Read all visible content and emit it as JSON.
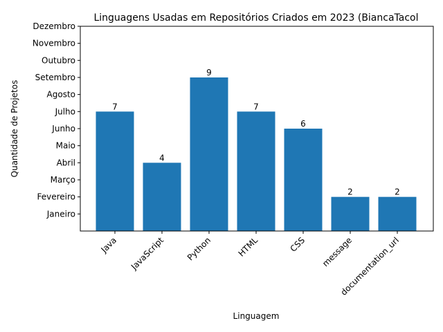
{
  "chart_data": {
    "type": "bar",
    "title": "Linguagens Usadas em Repositórios Criados em 2023 (BiancaTacol",
    "xlabel": "Linguagem",
    "ylabel": "Quantidade de Projetos",
    "categories": [
      "Java",
      "JavaScript",
      "Python",
      "HTML",
      "CSS",
      "message",
      "documentation_url"
    ],
    "values": [
      7,
      4,
      9,
      7,
      6,
      2,
      2
    ],
    "data_labels": [
      "7",
      "4",
      "9",
      "7",
      "6",
      "2",
      "2"
    ],
    "y_ticks": [
      {
        "value": 1,
        "label": "Janeiro"
      },
      {
        "value": 2,
        "label": "Fevereiro"
      },
      {
        "value": 3,
        "label": "Março"
      },
      {
        "value": 4,
        "label": "Abril"
      },
      {
        "value": 5,
        "label": "Maio"
      },
      {
        "value": 6,
        "label": "Junho"
      },
      {
        "value": 7,
        "label": "Julho"
      },
      {
        "value": 8,
        "label": "Agosto"
      },
      {
        "value": 9,
        "label": "Setembro"
      },
      {
        "value": 10,
        "label": "Outubro"
      },
      {
        "value": 11,
        "label": "Novembro"
      },
      {
        "value": 12,
        "label": "Dezembro"
      }
    ],
    "ylim": [
      0,
      12
    ],
    "grid": false,
    "bar_color": "#1f77b4"
  }
}
